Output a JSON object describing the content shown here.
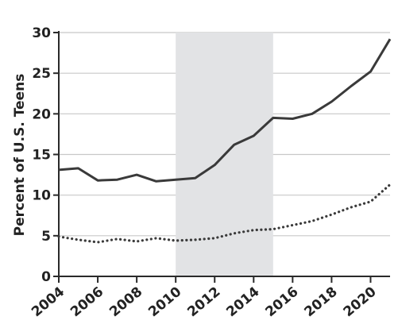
{
  "chart_data": {
    "type": "line",
    "title": "",
    "xlabel": "",
    "ylabel": "Percent of U.S. Teens",
    "xlim": [
      2004,
      2021
    ],
    "ylim": [
      0,
      30
    ],
    "x_ticks": [
      2004,
      2006,
      2008,
      2010,
      2012,
      2014,
      2016,
      2018,
      2020
    ],
    "y_ticks": [
      0,
      5,
      10,
      15,
      20,
      25,
      30
    ],
    "grid": "horizontal",
    "legend": "none",
    "shaded_region": {
      "x_start": 2010,
      "x_end": 2015,
      "color": "#e2e3e5"
    },
    "series": [
      {
        "style": "solid",
        "color": "#3a3a3a",
        "x": [
          2004,
          2005,
          2006,
          2007,
          2008,
          2009,
          2010,
          2011,
          2012,
          2013,
          2014,
          2015,
          2016,
          2017,
          2018,
          2019,
          2020,
          2021
        ],
        "values": [
          13.1,
          13.3,
          11.8,
          11.9,
          12.5,
          11.7,
          11.9,
          12.1,
          13.7,
          16.2,
          17.3,
          19.5,
          19.4,
          20.0,
          21.5,
          23.4,
          25.2,
          29.2
        ]
      },
      {
        "style": "dotted",
        "color": "#3a3a3a",
        "x": [
          2004,
          2005,
          2006,
          2007,
          2008,
          2009,
          2010,
          2011,
          2012,
          2013,
          2014,
          2015,
          2016,
          2017,
          2018,
          2019,
          2020,
          2021
        ],
        "values": [
          4.9,
          4.5,
          4.2,
          4.6,
          4.3,
          4.7,
          4.4,
          4.5,
          4.7,
          5.3,
          5.7,
          5.8,
          6.3,
          6.8,
          7.6,
          8.5,
          9.2,
          11.3
        ]
      }
    ]
  }
}
